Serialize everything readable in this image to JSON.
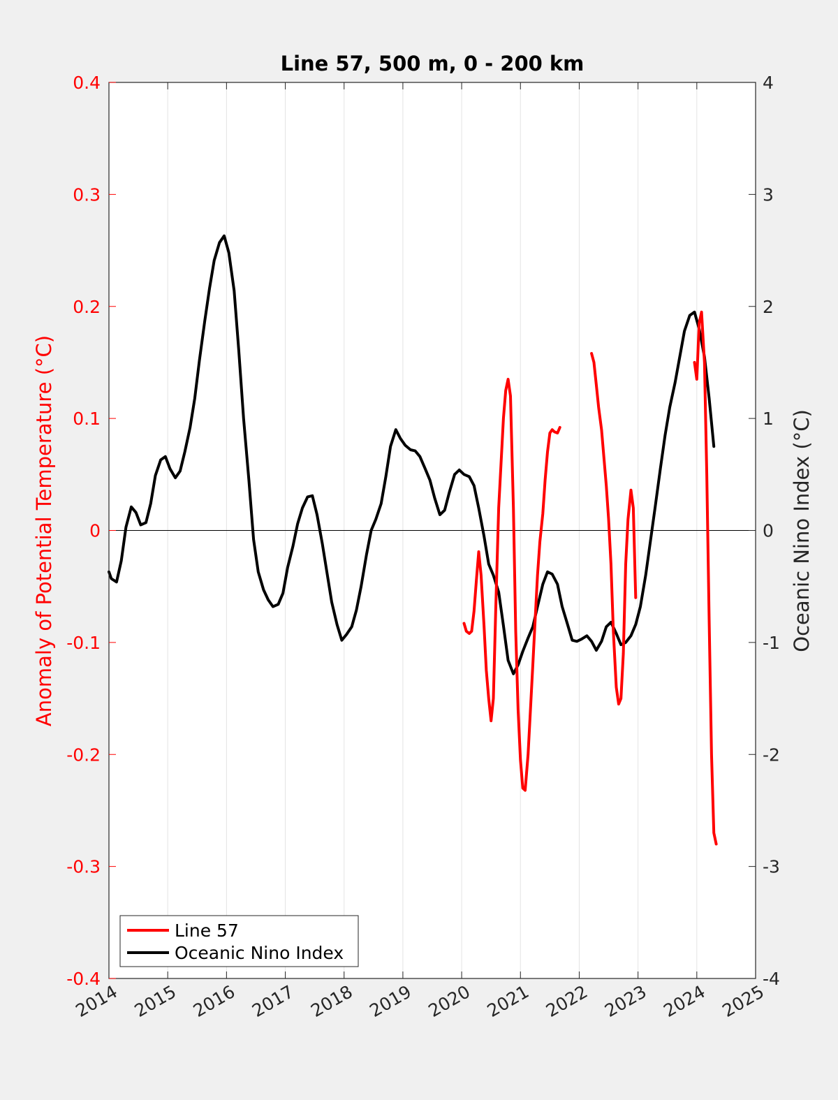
{
  "chart_data": {
    "type": "line",
    "title": "Line 57, 500 m, 0 - 200 km",
    "xlabel": "",
    "ylabel_left": "Anomaly of Potential Temperature (°C)",
    "ylabel_right": "Oceanic Nino Index (°C)",
    "xlim": [
      2014,
      2025
    ],
    "ylim_left": [
      -0.4,
      0.4
    ],
    "ylim_right": [
      -4,
      4
    ],
    "x_ticks": [
      "2014",
      "2015",
      "2016",
      "2017",
      "2018",
      "2019",
      "2020",
      "2021",
      "2022",
      "2023",
      "2024",
      "2025"
    ],
    "y_ticks_left": [
      "-0.4",
      "-0.3",
      "-0.2",
      "-0.1",
      "0",
      "0.1",
      "0.2",
      "0.3",
      "0.4"
    ],
    "y_ticks_right": [
      "-4",
      "-3",
      "-2",
      "-1",
      "0",
      "1",
      "2",
      "3",
      "4"
    ],
    "grid": "vertical",
    "legend_position": "bottom-left",
    "colors": {
      "line57": "#ff0000",
      "oni": "#000000",
      "left_axis": "#ff0000",
      "right_axis": "#262626"
    },
    "series": [
      {
        "name": "Line 57",
        "axis": "left",
        "color": "#ff0000",
        "segments": [
          [
            [
              2020.04,
              -0.083
            ],
            [
              2020.08,
              -0.09
            ],
            [
              2020.13,
              -0.092
            ],
            [
              2020.17,
              -0.09
            ],
            [
              2020.21,
              -0.072
            ],
            [
              2020.25,
              -0.045
            ],
            [
              2020.29,
              -0.019
            ],
            [
              2020.33,
              -0.04
            ],
            [
              2020.38,
              -0.085
            ],
            [
              2020.42,
              -0.125
            ],
            [
              2020.46,
              -0.15
            ],
            [
              2020.5,
              -0.17
            ],
            [
              2020.54,
              -0.15
            ],
            [
              2020.58,
              -0.07
            ],
            [
              2020.63,
              0.02
            ],
            [
              2020.67,
              0.06
            ],
            [
              2020.71,
              0.1
            ],
            [
              2020.75,
              0.125
            ],
            [
              2020.79,
              0.135
            ],
            [
              2020.83,
              0.12
            ],
            [
              2020.88,
              0.02
            ],
            [
              2020.92,
              -0.09
            ],
            [
              2020.96,
              -0.16
            ],
            [
              2021.0,
              -0.205
            ],
            [
              2021.04,
              -0.23
            ],
            [
              2021.08,
              -0.232
            ],
            [
              2021.13,
              -0.2
            ],
            [
              2021.17,
              -0.16
            ],
            [
              2021.21,
              -0.12
            ],
            [
              2021.25,
              -0.08
            ],
            [
              2021.29,
              -0.04
            ],
            [
              2021.33,
              -0.01
            ],
            [
              2021.38,
              0.015
            ],
            [
              2021.42,
              0.045
            ],
            [
              2021.46,
              0.07
            ],
            [
              2021.5,
              0.087
            ],
            [
              2021.54,
              0.09
            ],
            [
              2021.58,
              0.088
            ],
            [
              2021.63,
              0.087
            ],
            [
              2021.67,
              0.092
            ]
          ],
          [
            [
              2022.21,
              0.158
            ],
            [
              2022.25,
              0.15
            ],
            [
              2022.29,
              0.13
            ],
            [
              2022.33,
              0.11
            ],
            [
              2022.38,
              0.09
            ],
            [
              2022.42,
              0.065
            ],
            [
              2022.46,
              0.04
            ],
            [
              2022.5,
              0.01
            ],
            [
              2022.54,
              -0.03
            ],
            [
              2022.58,
              -0.09
            ],
            [
              2022.63,
              -0.14
            ],
            [
              2022.67,
              -0.155
            ],
            [
              2022.71,
              -0.15
            ],
            [
              2022.75,
              -0.11
            ],
            [
              2022.79,
              -0.03
            ],
            [
              2022.83,
              0.01
            ],
            [
              2022.88,
              0.036
            ],
            [
              2022.92,
              0.02
            ],
            [
              2022.96,
              -0.06
            ]
          ],
          [
            [
              2023.96,
              0.15
            ],
            [
              2024.0,
              0.135
            ],
            [
              2024.04,
              0.185
            ],
            [
              2024.08,
              0.195
            ],
            [
              2024.13,
              0.15
            ],
            [
              2024.17,
              0.05
            ],
            [
              2024.21,
              -0.08
            ],
            [
              2024.25,
              -0.2
            ],
            [
              2024.29,
              -0.27
            ],
            [
              2024.33,
              -0.28
            ]
          ]
        ]
      },
      {
        "name": "Oceanic Nino Index",
        "axis": "right",
        "color": "#000000",
        "segments": [
          [
            [
              2014.0,
              -0.37
            ],
            [
              2014.04,
              -0.43
            ],
            [
              2014.13,
              -0.46
            ],
            [
              2014.21,
              -0.27
            ],
            [
              2014.29,
              0.03
            ],
            [
              2014.38,
              0.21
            ],
            [
              2014.46,
              0.16
            ],
            [
              2014.54,
              0.05
            ],
            [
              2014.63,
              0.07
            ],
            [
              2014.71,
              0.24
            ],
            [
              2014.79,
              0.49
            ],
            [
              2014.88,
              0.63
            ],
            [
              2014.96,
              0.66
            ],
            [
              2015.04,
              0.55
            ],
            [
              2015.13,
              0.47
            ],
            [
              2015.21,
              0.53
            ],
            [
              2015.29,
              0.7
            ],
            [
              2015.38,
              0.92
            ],
            [
              2015.46,
              1.18
            ],
            [
              2015.54,
              1.52
            ],
            [
              2015.63,
              1.87
            ],
            [
              2015.71,
              2.16
            ],
            [
              2015.79,
              2.41
            ],
            [
              2015.88,
              2.57
            ],
            [
              2015.96,
              2.63
            ],
            [
              2016.04,
              2.48
            ],
            [
              2016.13,
              2.14
            ],
            [
              2016.21,
              1.6
            ],
            [
              2016.29,
              1.0
            ],
            [
              2016.38,
              0.45
            ],
            [
              2016.46,
              -0.08
            ],
            [
              2016.54,
              -0.37
            ],
            [
              2016.63,
              -0.53
            ],
            [
              2016.71,
              -0.62
            ],
            [
              2016.79,
              -0.68
            ],
            [
              2016.88,
              -0.66
            ],
            [
              2016.96,
              -0.56
            ],
            [
              2017.04,
              -0.33
            ],
            [
              2017.13,
              -0.14
            ],
            [
              2017.21,
              0.06
            ],
            [
              2017.29,
              0.2
            ],
            [
              2017.38,
              0.3
            ],
            [
              2017.46,
              0.31
            ],
            [
              2017.54,
              0.14
            ],
            [
              2017.63,
              -0.12
            ],
            [
              2017.71,
              -0.38
            ],
            [
              2017.79,
              -0.64
            ],
            [
              2017.88,
              -0.84
            ],
            [
              2017.96,
              -0.98
            ],
            [
              2018.04,
              -0.93
            ],
            [
              2018.13,
              -0.86
            ],
            [
              2018.21,
              -0.71
            ],
            [
              2018.29,
              -0.5
            ],
            [
              2018.38,
              -0.22
            ],
            [
              2018.46,
              0.0
            ],
            [
              2018.54,
              0.1
            ],
            [
              2018.63,
              0.24
            ],
            [
              2018.71,
              0.48
            ],
            [
              2018.79,
              0.75
            ],
            [
              2018.88,
              0.9
            ],
            [
              2018.96,
              0.82
            ],
            [
              2019.04,
              0.76
            ],
            [
              2019.13,
              0.72
            ],
            [
              2019.21,
              0.71
            ],
            [
              2019.29,
              0.66
            ],
            [
              2019.38,
              0.55
            ],
            [
              2019.46,
              0.45
            ],
            [
              2019.54,
              0.29
            ],
            [
              2019.63,
              0.14
            ],
            [
              2019.71,
              0.18
            ],
            [
              2019.79,
              0.34
            ],
            [
              2019.88,
              0.5
            ],
            [
              2019.96,
              0.54
            ],
            [
              2020.04,
              0.5
            ],
            [
              2020.13,
              0.48
            ],
            [
              2020.21,
              0.4
            ],
            [
              2020.29,
              0.2
            ],
            [
              2020.38,
              -0.05
            ],
            [
              2020.46,
              -0.3
            ],
            [
              2020.54,
              -0.4
            ],
            [
              2020.63,
              -0.55
            ],
            [
              2020.71,
              -0.85
            ],
            [
              2020.79,
              -1.16
            ],
            [
              2020.88,
              -1.28
            ],
            [
              2020.96,
              -1.2
            ],
            [
              2021.04,
              -1.08
            ],
            [
              2021.13,
              -0.96
            ],
            [
              2021.21,
              -0.86
            ],
            [
              2021.29,
              -0.68
            ],
            [
              2021.38,
              -0.48
            ],
            [
              2021.46,
              -0.37
            ],
            [
              2021.54,
              -0.39
            ],
            [
              2021.63,
              -0.48
            ],
            [
              2021.71,
              -0.68
            ],
            [
              2021.79,
              -0.82
            ],
            [
              2021.88,
              -0.98
            ],
            [
              2021.96,
              -0.99
            ],
            [
              2022.04,
              -0.97
            ],
            [
              2022.13,
              -0.94
            ],
            [
              2022.21,
              -0.99
            ],
            [
              2022.29,
              -1.07
            ],
            [
              2022.38,
              -0.99
            ],
            [
              2022.46,
              -0.86
            ],
            [
              2022.54,
              -0.82
            ],
            [
              2022.63,
              -0.92
            ],
            [
              2022.71,
              -1.02
            ],
            [
              2022.79,
              -1.0
            ],
            [
              2022.88,
              -0.94
            ],
            [
              2022.96,
              -0.84
            ],
            [
              2023.04,
              -0.68
            ],
            [
              2023.13,
              -0.4
            ],
            [
              2023.21,
              -0.1
            ],
            [
              2023.29,
              0.2
            ],
            [
              2023.38,
              0.55
            ],
            [
              2023.46,
              0.85
            ],
            [
              2023.54,
              1.1
            ],
            [
              2023.63,
              1.32
            ],
            [
              2023.71,
              1.55
            ],
            [
              2023.79,
              1.78
            ],
            [
              2023.88,
              1.92
            ],
            [
              2023.96,
              1.95
            ],
            [
              2024.04,
              1.8
            ],
            [
              2024.13,
              1.55
            ],
            [
              2024.21,
              1.18
            ],
            [
              2024.29,
              0.75
            ]
          ]
        ]
      }
    ]
  }
}
